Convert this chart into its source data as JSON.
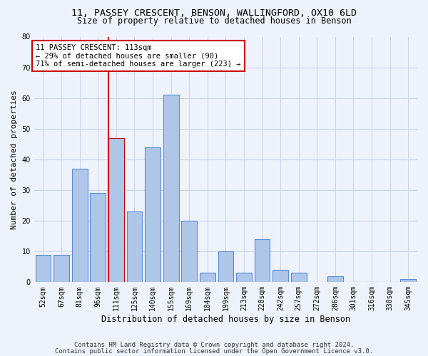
{
  "title_line1": "11, PASSEY CRESCENT, BENSON, WALLINGFORD, OX10 6LD",
  "title_line2": "Size of property relative to detached houses in Benson",
  "xlabel": "Distribution of detached houses by size in Benson",
  "ylabel": "Number of detached properties",
  "categories": [
    "52sqm",
    "67sqm",
    "81sqm",
    "96sqm",
    "111sqm",
    "125sqm",
    "140sqm",
    "155sqm",
    "169sqm",
    "184sqm",
    "199sqm",
    "213sqm",
    "228sqm",
    "242sqm",
    "257sqm",
    "272sqm",
    "286sqm",
    "301sqm",
    "316sqm",
    "330sqm",
    "345sqm"
  ],
  "values": [
    9,
    9,
    37,
    29,
    47,
    23,
    44,
    61,
    20,
    3,
    10,
    3,
    14,
    4,
    3,
    0,
    2,
    0,
    0,
    0,
    1
  ],
  "bar_color": "#aec6e8",
  "bar_edge_color": "#5b8dd9",
  "highlight_bar_color": "#aec6e8",
  "highlight_bar_edge_color": "#c00000",
  "highlight_index": 4,
  "vline_color": "#cc0000",
  "annotation_text": "11 PASSEY CRESCENT: 113sqm\n← 29% of detached houses are smaller (90)\n71% of semi-detached houses are larger (223) →",
  "annotation_box_facecolor": "#ffffff",
  "annotation_box_edgecolor": "#cc0000",
  "ylim": [
    0,
    80
  ],
  "yticks": [
    0,
    10,
    20,
    30,
    40,
    50,
    60,
    70,
    80
  ],
  "grid_color": "#c8d4e8",
  "background_color": "#eef2fa",
  "footer_line1": "Contains HM Land Registry data © Crown copyright and database right 2024.",
  "footer_line2": "Contains public sector information licensed under the Open Government Licence v3.0.",
  "title_fontsize": 9.5,
  "subtitle_fontsize": 8.5,
  "ylabel_fontsize": 8,
  "xlabel_fontsize": 8.5,
  "tick_fontsize": 7,
  "annotation_fontsize": 7.5,
  "footer_fontsize": 6.5
}
